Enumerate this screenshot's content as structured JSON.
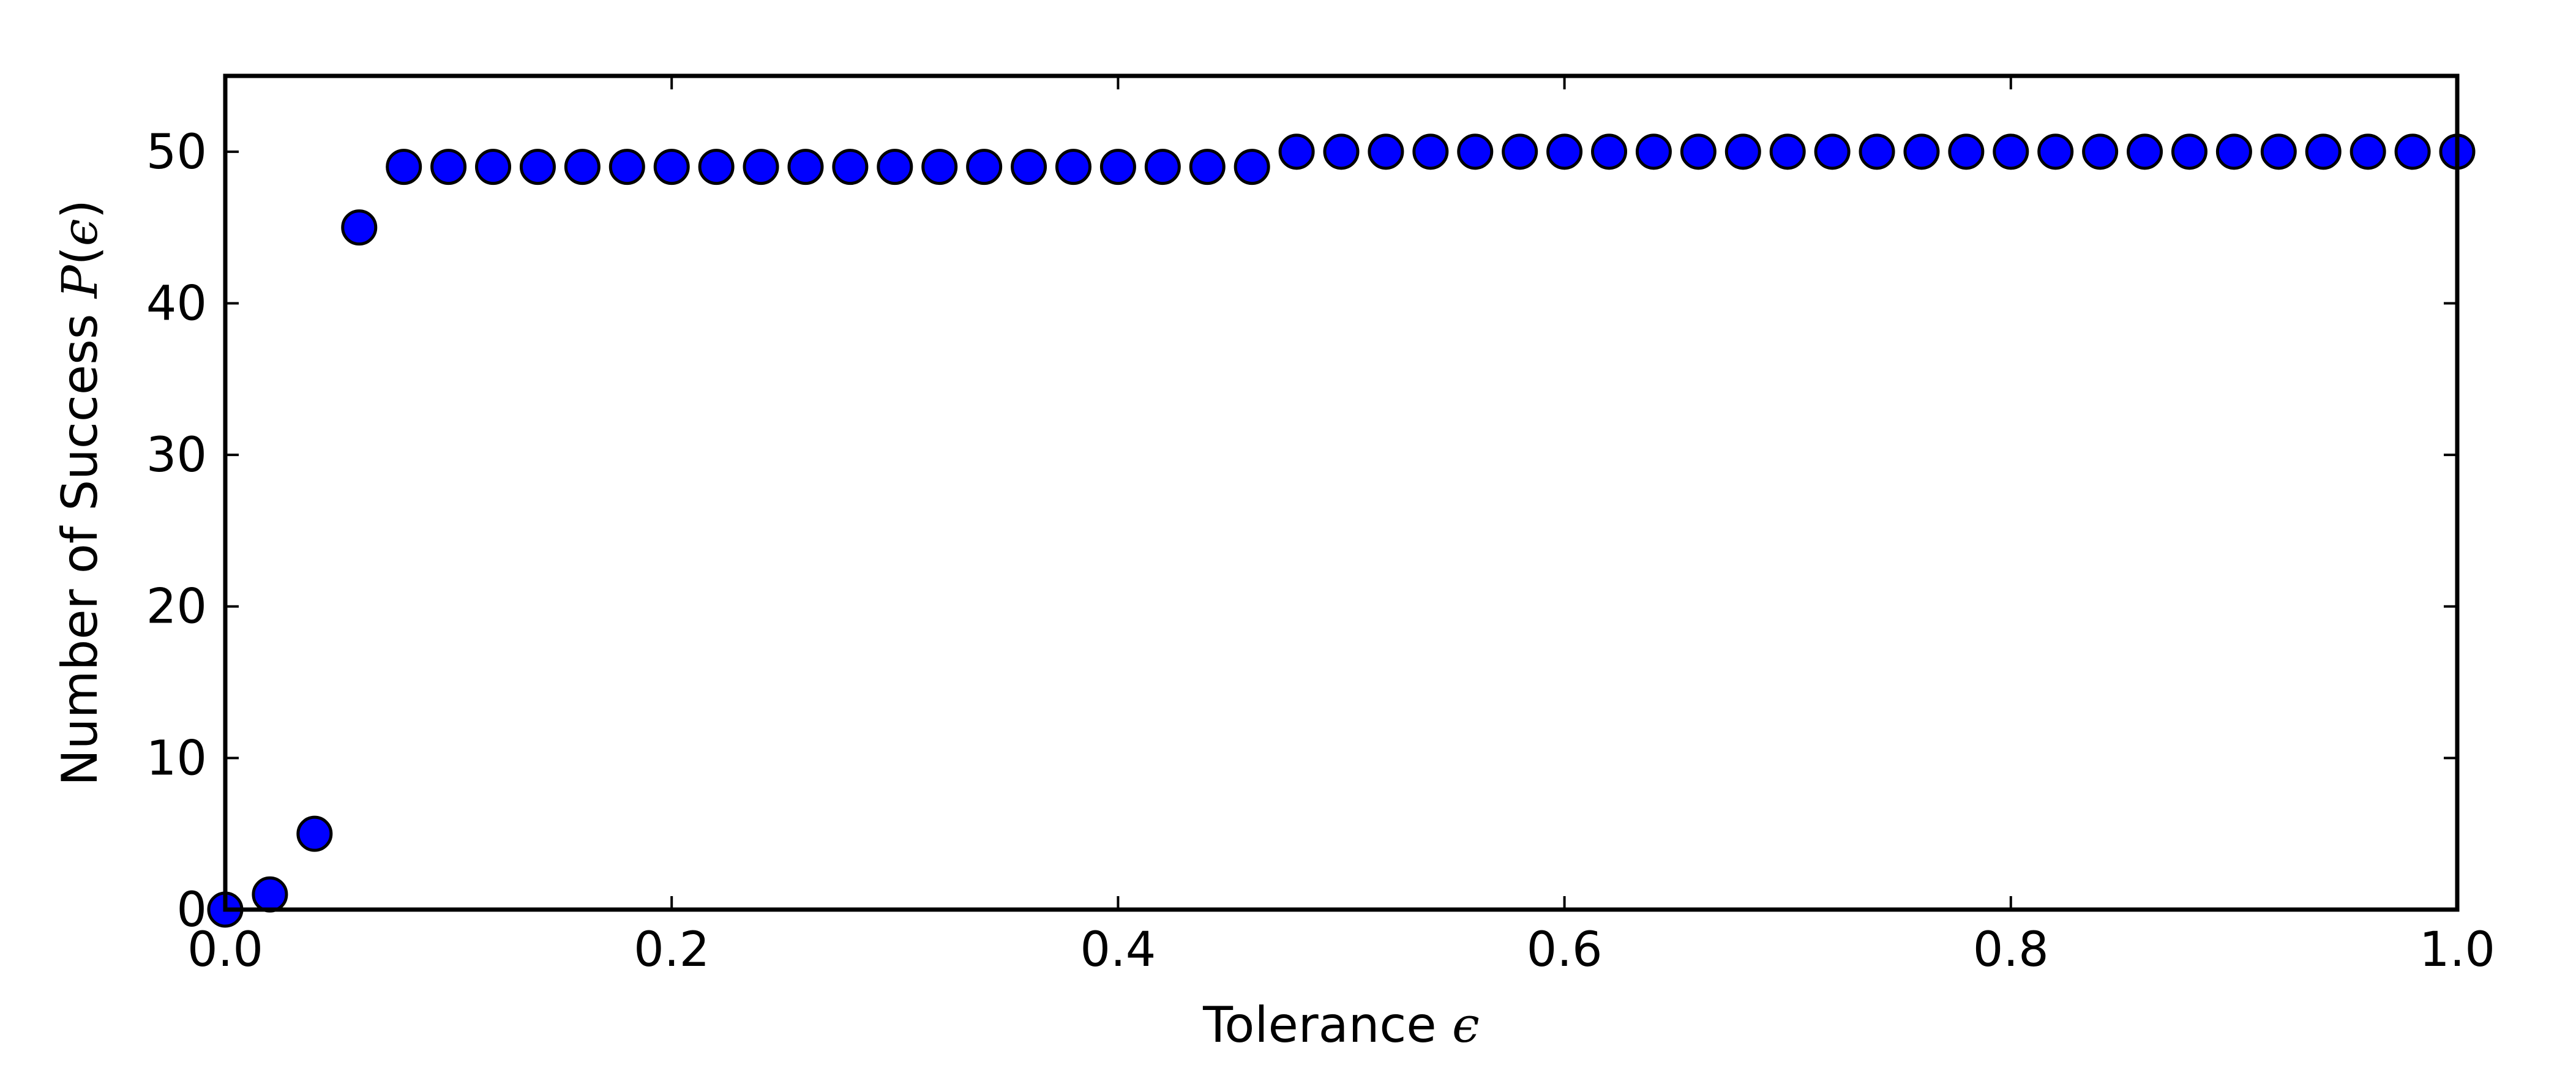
{
  "chart_data": {
    "type": "scatter",
    "title": "",
    "xlabel": {
      "text": "Tolerance ",
      "symbol": "ϵ"
    },
    "ylabel": {
      "text": "Number of Success ",
      "symbol": "P",
      "arg": "ϵ"
    },
    "xlim": [
      0.0,
      1.0
    ],
    "ylim": [
      0,
      55
    ],
    "xticks": [
      0.0,
      0.2,
      0.4,
      0.6,
      0.8,
      1.0
    ],
    "xtick_labels": [
      "0.0",
      "0.2",
      "0.4",
      "0.6",
      "0.8",
      "1.0"
    ],
    "yticks": [
      0,
      10,
      20,
      30,
      40,
      50
    ],
    "ytick_labels": [
      "0",
      "10",
      "20",
      "30",
      "40",
      "50"
    ],
    "grid": false,
    "legend": "none",
    "marker_color": "#0000ff",
    "marker_edge": "#000000",
    "x": [
      0.0,
      0.02,
      0.04,
      0.06,
      0.08,
      0.1,
      0.12,
      0.14,
      0.16,
      0.18,
      0.2,
      0.22,
      0.24,
      0.26,
      0.28,
      0.3,
      0.32,
      0.34,
      0.36,
      0.38,
      0.4,
      0.42,
      0.44,
      0.46,
      0.48,
      0.5,
      0.52,
      0.54,
      0.56,
      0.58,
      0.6,
      0.62,
      0.64,
      0.66,
      0.68,
      0.7,
      0.72,
      0.74,
      0.76,
      0.78,
      0.8,
      0.82,
      0.84,
      0.86,
      0.88,
      0.9,
      0.92,
      0.94,
      0.96,
      0.98,
      1.0
    ],
    "y": [
      0,
      1,
      5,
      45,
      49,
      49,
      49,
      49,
      49,
      49,
      49,
      49,
      49,
      49,
      49,
      49,
      49,
      49,
      49,
      49,
      49,
      49,
      49,
      49,
      50,
      50,
      50,
      50,
      50,
      50,
      50,
      50,
      50,
      50,
      50,
      50,
      50,
      50,
      50,
      50,
      50,
      50,
      50,
      50,
      50,
      50,
      50,
      50,
      50,
      50,
      50
    ]
  }
}
